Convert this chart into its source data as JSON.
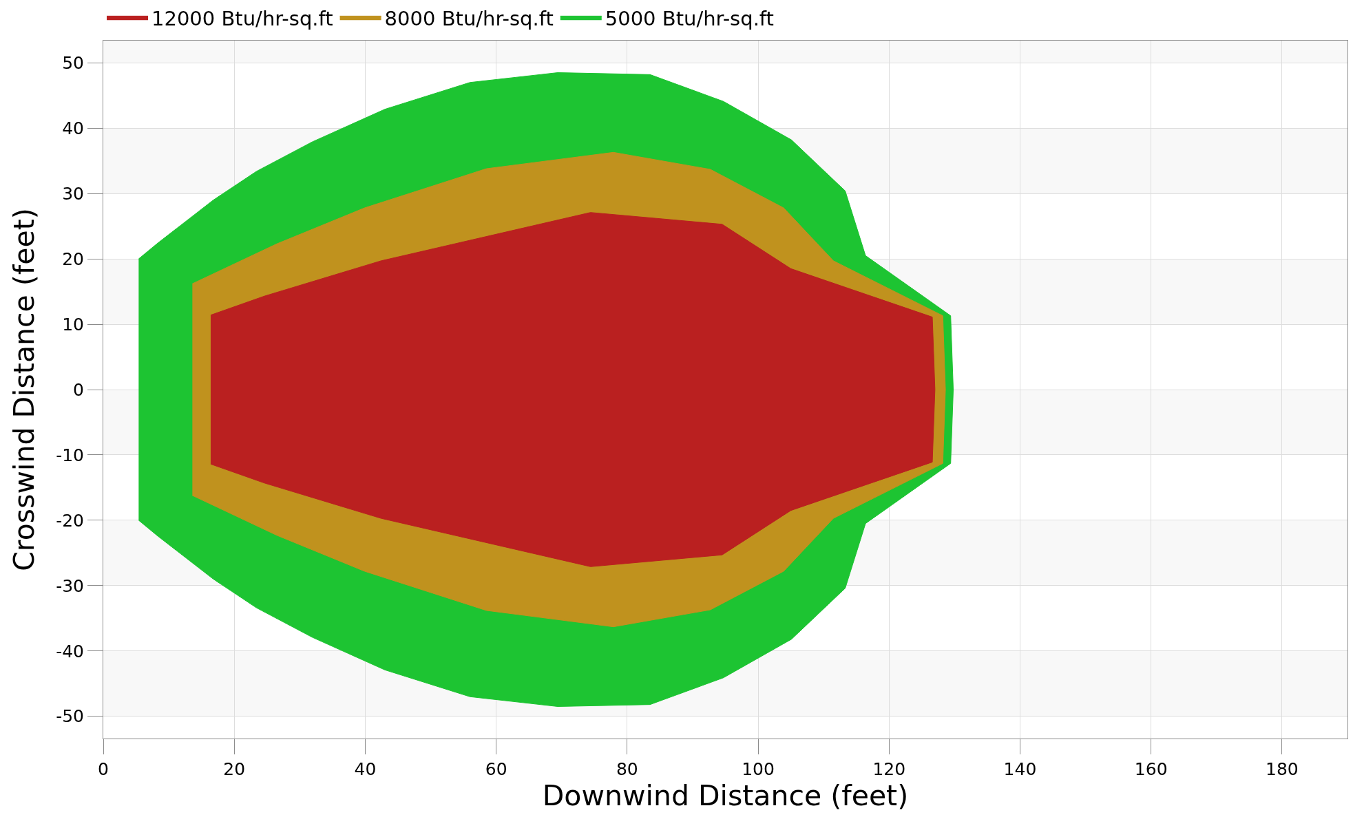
{
  "chart_data": {
    "type": "area",
    "xlabel": "Downwind Distance (feet)",
    "ylabel": "Crosswind Distance (feet)",
    "series": [
      {
        "name": "12000 Btu/hr-sq.ft",
        "color": "#ba2020",
        "x": [
          16.4,
          24.6,
          42.4,
          74.4,
          94.5,
          105.0,
          126.6,
          127.0,
          126.6,
          105.0,
          94.5,
          74.4,
          42.4,
          24.6,
          16.4
        ],
        "values": [
          11.4,
          14.3,
          19.7,
          27.1,
          25.3,
          18.5,
          11.1,
          0,
          -11.1,
          -18.5,
          -25.3,
          -27.1,
          -19.7,
          -14.3,
          -11.4
        ]
      },
      {
        "name": "8000 Btu/hr-sq.ft",
        "color": "#c0921e",
        "x": [
          13.6,
          26.5,
          39.9,
          58.5,
          77.9,
          92.7,
          103.9,
          111.5,
          128.2,
          128.6,
          128.2,
          111.5,
          103.9,
          92.7,
          77.9,
          58.5,
          39.9,
          26.5,
          13.6
        ],
        "values": [
          16.2,
          22.3,
          27.8,
          33.8,
          36.3,
          33.7,
          27.8,
          19.7,
          11.3,
          0,
          -11.3,
          -19.7,
          -27.8,
          -33.7,
          -36.3,
          -33.8,
          -27.8,
          -22.3,
          -16.2
        ]
      },
      {
        "name": "5000 Btu/hr-sq.ft",
        "color": "#1dc432",
        "x": [
          5.4,
          8.3,
          16.8,
          23.4,
          31.9,
          43.0,
          56.0,
          69.4,
          83.5,
          94.7,
          105.1,
          113.3,
          116.4,
          129.4,
          129.8,
          129.4,
          116.4,
          113.3,
          105.1,
          94.7,
          83.5,
          69.4,
          56.0,
          43.0,
          31.9,
          23.4,
          16.8,
          8.3,
          5.4
        ],
        "values": [
          20.0,
          22.4,
          29.0,
          33.4,
          37.9,
          42.9,
          47.0,
          48.5,
          48.2,
          44.1,
          38.2,
          30.4,
          20.5,
          11.3,
          0,
          -11.3,
          -20.5,
          -30.4,
          -38.2,
          -44.1,
          -48.2,
          -48.5,
          -47.0,
          -42.9,
          -37.9,
          -33.4,
          -29.0,
          -22.4,
          -20.0
        ]
      }
    ],
    "xlim": [
      0,
      190
    ],
    "xticks": [
      0,
      20,
      40,
      60,
      80,
      100,
      120,
      140,
      160,
      180
    ],
    "ylim": [
      -53.4,
      53.4
    ],
    "yticks": [
      -50,
      -40,
      -30,
      -20,
      -10,
      0,
      10,
      20,
      30,
      40,
      50
    ],
    "bands": [
      {
        "axis": "y",
        "from": 50,
        "to": 53.4,
        "color": "#f8f8f8"
      },
      {
        "axis": "y",
        "from": 30,
        "to": 40,
        "color": "#f8f8f8"
      },
      {
        "axis": "y",
        "from": 10,
        "to": 20,
        "color": "#f8f8f8"
      },
      {
        "axis": "y",
        "from": -10,
        "to": 0,
        "color": "#f8f8f8"
      },
      {
        "axis": "y",
        "from": -30,
        "to": -20,
        "color": "#f8f8f8"
      },
      {
        "axis": "y",
        "from": -50,
        "to": -40,
        "color": "#f8f8f8"
      }
    ],
    "grid": true,
    "legend": "top left"
  }
}
